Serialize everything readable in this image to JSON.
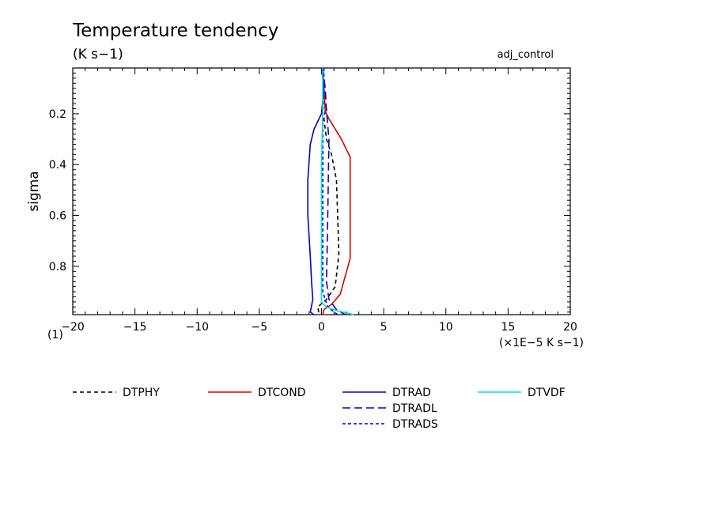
{
  "header": {
    "title": "Temperature tendency",
    "units": "(K s−1)",
    "experiment": "adj_control"
  },
  "chart_data": {
    "type": "line",
    "ylabel": "sigma",
    "x_scale_label": "(×1E−5 K s−1)",
    "corner_label": "(1)",
    "xlim": [
      -20,
      20
    ],
    "ylim": [
      0.02,
      0.99
    ],
    "y_inverted": true,
    "x_ticks": [
      -20,
      -15,
      -10,
      -5,
      0,
      5,
      10,
      15,
      20
    ],
    "x_tick_labels": [
      "−20",
      "−15",
      "−10",
      "−5",
      "0",
      "5",
      "10",
      "15",
      "20"
    ],
    "y_ticks": [
      0.2,
      0.4,
      0.6,
      0.8
    ],
    "y_tick_labels": [
      "0.2",
      "0.4",
      "0.6",
      "0.8"
    ],
    "series": [
      {
        "name": "DTPHY",
        "color": "#000000",
        "dash": "dashed",
        "points": [
          [
            0.1,
            0.02
          ],
          [
            0.2,
            0.1
          ],
          [
            0.3,
            0.19
          ],
          [
            0.2,
            0.22
          ],
          [
            0.4,
            0.3
          ],
          [
            0.8,
            0.36
          ],
          [
            1.2,
            0.46
          ],
          [
            1.3,
            0.6
          ],
          [
            1.4,
            0.75
          ],
          [
            1.1,
            0.88
          ],
          [
            0.4,
            0.93
          ],
          [
            -0.3,
            0.96
          ],
          [
            -0.2,
            0.99
          ]
        ]
      },
      {
        "name": "DTCOND",
        "color": "#e00000",
        "dash": "solid",
        "points": [
          [
            0.1,
            0.02
          ],
          [
            0.2,
            0.1
          ],
          [
            0.3,
            0.19
          ],
          [
            0.6,
            0.22
          ],
          [
            1.6,
            0.3
          ],
          [
            2.3,
            0.37
          ],
          [
            2.3,
            0.46
          ],
          [
            2.3,
            0.6
          ],
          [
            2.3,
            0.77
          ],
          [
            1.5,
            0.91
          ],
          [
            0.8,
            0.95
          ],
          [
            0.2,
            0.97
          ],
          [
            0.1,
            0.99
          ]
        ]
      },
      {
        "name": "DTRAD",
        "color": "#0000cc",
        "dash": "solid",
        "points": [
          [
            0.0,
            0.02
          ],
          [
            0.2,
            0.1
          ],
          [
            0.0,
            0.2
          ],
          [
            -0.6,
            0.26
          ],
          [
            -0.9,
            0.32
          ],
          [
            -1.1,
            0.46
          ],
          [
            -1.1,
            0.6
          ],
          [
            -0.9,
            0.76
          ],
          [
            -0.8,
            0.86
          ],
          [
            -0.7,
            0.93
          ],
          [
            -0.9,
            0.98
          ],
          [
            -0.6,
            0.99
          ]
        ]
      },
      {
        "name": "DTRADL",
        "color": "#0000cc",
        "dash": "longdash",
        "points": [
          [
            0.1,
            0.02
          ],
          [
            0.3,
            0.1
          ],
          [
            0.4,
            0.19
          ],
          [
            0.6,
            0.3
          ],
          [
            0.5,
            0.6
          ],
          [
            0.4,
            0.86
          ],
          [
            0.6,
            0.93
          ],
          [
            1.2,
            0.97
          ],
          [
            1.9,
            0.99
          ]
        ]
      },
      {
        "name": "DTRADS",
        "color": "#0000cc",
        "dash": "shortdash",
        "points": [
          [
            0.2,
            0.02
          ],
          [
            0.2,
            0.1
          ],
          [
            0.1,
            0.2
          ],
          [
            0.1,
            0.6
          ],
          [
            0.1,
            0.9
          ],
          [
            0.5,
            0.96
          ],
          [
            1.3,
            0.99
          ]
        ]
      },
      {
        "name": "DTVDF",
        "color": "#00dddd",
        "dash": "solid",
        "points": [
          [
            0.1,
            0.02
          ],
          [
            0.1,
            0.2
          ],
          [
            0.0,
            0.4
          ],
          [
            0.0,
            0.6
          ],
          [
            0.0,
            0.8
          ],
          [
            0.0,
            0.94
          ],
          [
            0.4,
            0.96
          ],
          [
            1.3,
            0.975
          ],
          [
            2.6,
            0.99
          ]
        ]
      }
    ]
  }
}
